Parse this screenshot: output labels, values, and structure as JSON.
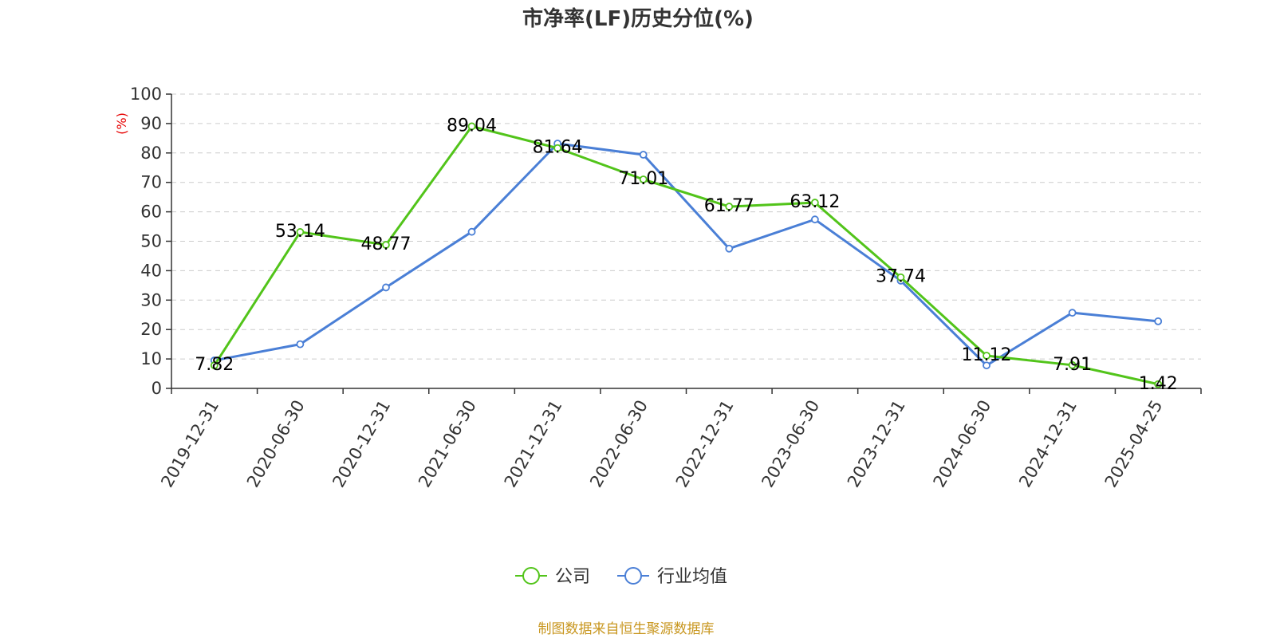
{
  "chart_data": {
    "type": "line",
    "title": "市净率(LF)历史分位(%)",
    "ylabel": "(%)",
    "xlabel": "",
    "ylim": [
      0,
      100
    ],
    "yticks": [
      0,
      10,
      20,
      30,
      40,
      50,
      60,
      70,
      80,
      90,
      100
    ],
    "categories": [
      "2019-12-31",
      "2020-06-30",
      "2020-12-31",
      "2021-06-30",
      "2021-12-31",
      "2022-06-30",
      "2022-12-31",
      "2023-06-30",
      "2023-12-31",
      "2024-06-30",
      "2024-12-31",
      "2025-04-25"
    ],
    "grid": true,
    "legend_position": "bottom",
    "series": [
      {
        "name": "公司",
        "color": "#52c41a",
        "values": [
          7.82,
          53.14,
          48.77,
          89.04,
          81.64,
          71.01,
          61.77,
          63.12,
          37.74,
          11.12,
          7.91,
          1.42
        ],
        "data_labels": [
          "7.82",
          "53.14",
          "48.77",
          "89.04",
          "81.64",
          "71.01",
          "61.77",
          "63.12",
          "37.74",
          "11.12",
          "7.91",
          "1.42"
        ]
      },
      {
        "name": "行业均值",
        "color": "#4a7fd6",
        "values": [
          9.5,
          15.0,
          34.3,
          53.2,
          83.2,
          79.4,
          47.5,
          57.4,
          36.6,
          7.8,
          25.7,
          22.8
        ]
      }
    ],
    "source": "制图数据来自恒生聚源数据库"
  },
  "colors": {
    "ylabel": "#e60000",
    "source": "#c8961e",
    "axis": "#333333",
    "grid": "#cccccc"
  }
}
